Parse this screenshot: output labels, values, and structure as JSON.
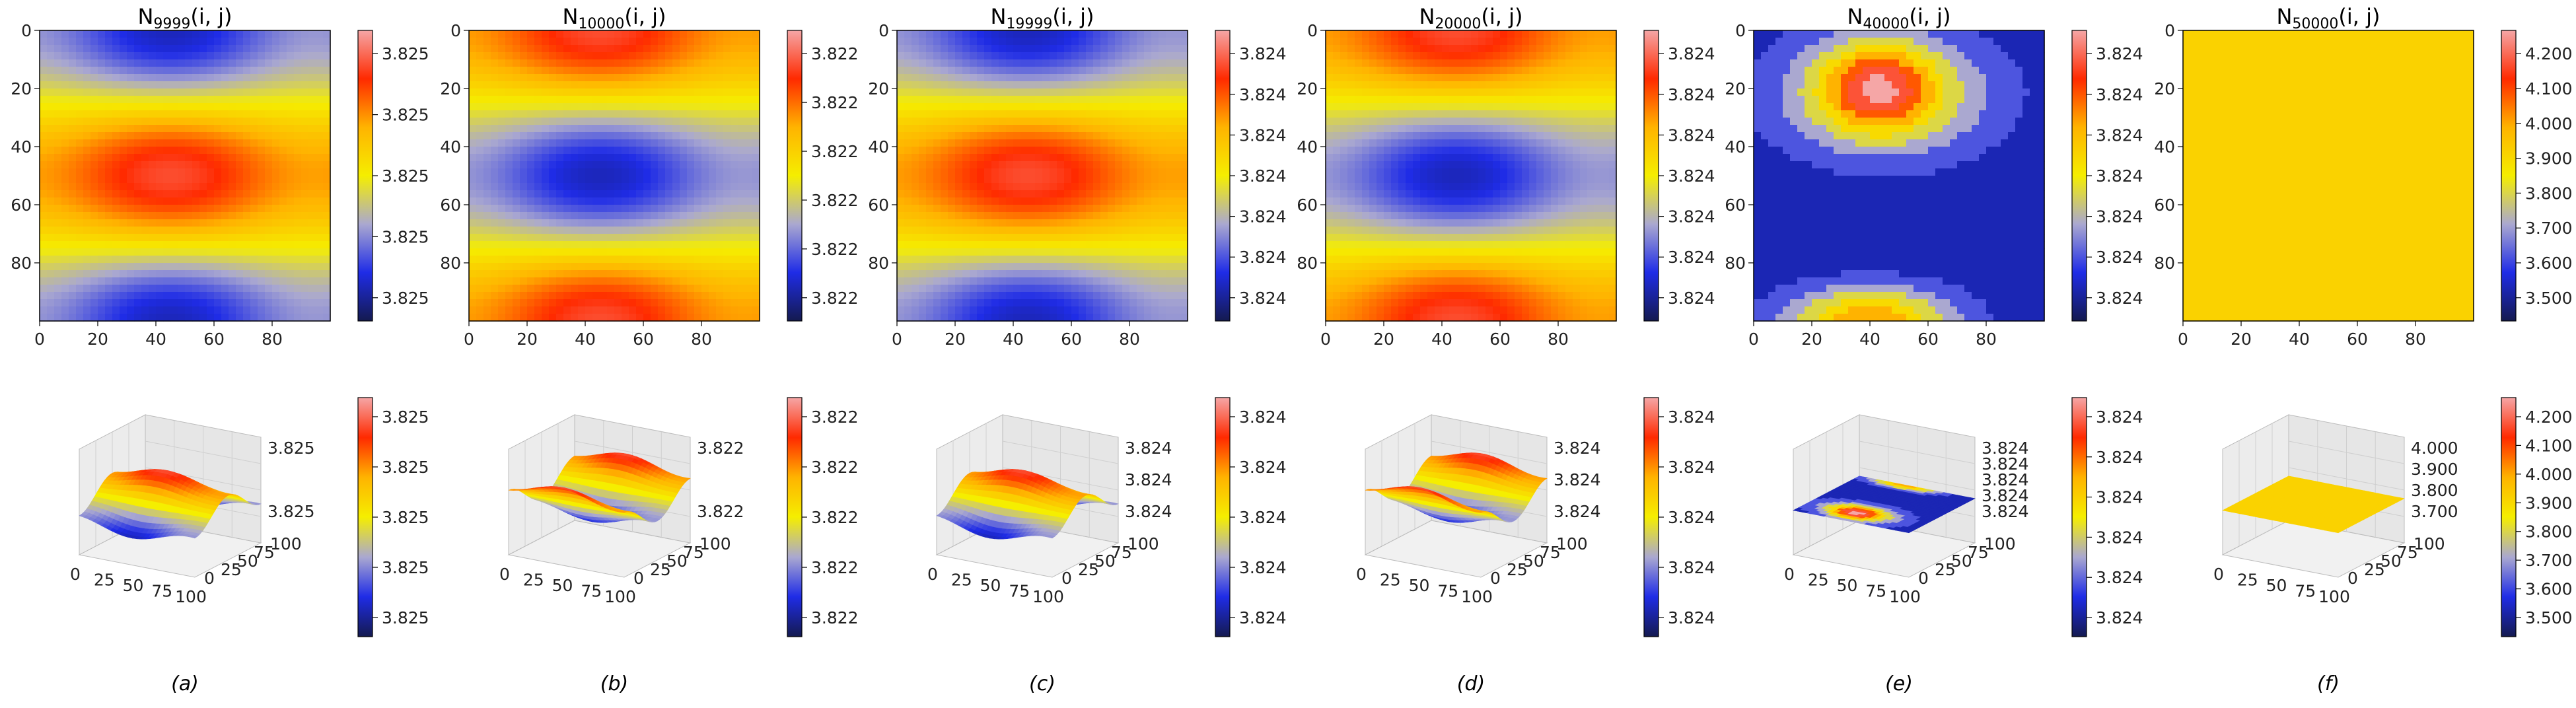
{
  "figure": {
    "panel_labels": [
      "(a)",
      "(b)",
      "(c)",
      "(d)",
      "(e)",
      "(f)"
    ]
  },
  "colors": {
    "colormap": [
      "#141a4f",
      "#1f2ce6",
      "#aaa8d0",
      "#f5ee00",
      "#ffb300",
      "#ff2a00",
      "#f5a6a6"
    ],
    "pane": "#f1f1f1",
    "grid": "#cfcfcf"
  },
  "chart_data": [
    {
      "type": "heatmap",
      "title_base": "N",
      "title_sub": "9999",
      "title_suffix": "(i, j)",
      "x_ticks": [
        "0",
        "20",
        "40",
        "60",
        "80"
      ],
      "y_ticks": [
        "0",
        "20",
        "40",
        "60",
        "80"
      ],
      "grid_size": [
        100,
        100
      ],
      "pattern": "a",
      "cbar_top_ticks": [
        "3.825",
        "3.825",
        "3.825",
        "3.825",
        "3.825"
      ],
      "z3d_ticks": [
        "3.825",
        "3.825"
      ],
      "xy3d_ticks": [
        "0",
        "25",
        "50",
        "75",
        "100"
      ],
      "cbar_bottom_ticks": [
        "3.825",
        "3.825",
        "3.825",
        "3.825",
        "3.825"
      ]
    },
    {
      "type": "heatmap",
      "title_base": "N",
      "title_sub": "10000",
      "title_suffix": "(i, j)",
      "x_ticks": [
        "0",
        "20",
        "40",
        "60",
        "80"
      ],
      "y_ticks": [
        "0",
        "20",
        "40",
        "60",
        "80"
      ],
      "grid_size": [
        100,
        100
      ],
      "pattern": "b",
      "cbar_top_ticks": [
        "3.822",
        "3.822",
        "3.822",
        "3.822",
        "3.822",
        "3.822"
      ],
      "z3d_ticks": [
        "3.822",
        "3.822"
      ],
      "xy3d_ticks": [
        "0",
        "25",
        "50",
        "75",
        "100"
      ],
      "cbar_bottom_ticks": [
        "3.822",
        "3.822",
        "3.822",
        "3.822",
        "3.822"
      ]
    },
    {
      "type": "heatmap",
      "title_base": "N",
      "title_sub": "19999",
      "title_suffix": "(i, j)",
      "x_ticks": [
        "0",
        "20",
        "40",
        "60",
        "80"
      ],
      "y_ticks": [
        "0",
        "20",
        "40",
        "60",
        "80"
      ],
      "grid_size": [
        100,
        100
      ],
      "pattern": "a",
      "cbar_top_ticks": [
        "3.824",
        "3.824",
        "3.824",
        "3.824",
        "3.824",
        "3.824",
        "3.824"
      ],
      "z3d_ticks": [
        "3.824",
        "3.824",
        "3.824"
      ],
      "xy3d_ticks": [
        "0",
        "25",
        "50",
        "75",
        "100"
      ],
      "cbar_bottom_ticks": [
        "3.824",
        "3.824",
        "3.824",
        "3.824",
        "3.824"
      ]
    },
    {
      "type": "heatmap",
      "title_base": "N",
      "title_sub": "20000",
      "title_suffix": "(i, j)",
      "x_ticks": [
        "0",
        "20",
        "40",
        "60",
        "80"
      ],
      "y_ticks": [
        "0",
        "20",
        "40",
        "60",
        "80"
      ],
      "grid_size": [
        100,
        100
      ],
      "pattern": "b",
      "cbar_top_ticks": [
        "3.824",
        "3.824",
        "3.824",
        "3.824",
        "3.824",
        "3.824",
        "3.824"
      ],
      "z3d_ticks": [
        "3.824",
        "3.824",
        "3.824"
      ],
      "xy3d_ticks": [
        "0",
        "25",
        "50",
        "75",
        "100"
      ],
      "cbar_bottom_ticks": [
        "3.824",
        "3.824",
        "3.824",
        "3.824",
        "3.824"
      ]
    },
    {
      "type": "heatmap",
      "title_base": "N",
      "title_sub": "40000",
      "title_suffix": "(i, j)",
      "x_ticks": [
        "0",
        "20",
        "40",
        "60",
        "80"
      ],
      "y_ticks": [
        "0",
        "20",
        "40",
        "60",
        "80"
      ],
      "grid_size": [
        100,
        100
      ],
      "pattern": "e",
      "cbar_top_ticks": [
        "3.824",
        "3.824",
        "3.824",
        "3.824",
        "3.824",
        "3.824",
        "3.824"
      ],
      "z3d_ticks": [
        "3.824",
        "3.824",
        "3.824",
        "3.824",
        "3.824"
      ],
      "xy3d_ticks": [
        "0",
        "25",
        "50",
        "75",
        "100"
      ],
      "cbar_bottom_ticks": [
        "3.824",
        "3.824",
        "3.824",
        "3.824",
        "3.824",
        "3.824"
      ]
    },
    {
      "type": "heatmap",
      "title_base": "N",
      "title_sub": "50000",
      "title_suffix": "(i, j)",
      "x_ticks": [
        "0",
        "20",
        "40",
        "60",
        "80"
      ],
      "y_ticks": [
        "0",
        "20",
        "40",
        "60",
        "80"
      ],
      "grid_size": [
        100,
        100
      ],
      "pattern": "f",
      "constant_value": 3.824,
      "cbar_top_ticks": [
        "4.200",
        "4.100",
        "4.000",
        "3.900",
        "3.800",
        "3.700",
        "3.600",
        "3.500"
      ],
      "z3d_ticks": [
        "4.000",
        "3.900",
        "3.800",
        "3.700"
      ],
      "xy3d_ticks": [
        "0",
        "25",
        "50",
        "75",
        "100"
      ],
      "cbar_bottom_ticks": [
        "4.200",
        "4.100",
        "4.000",
        "3.900",
        "3.800",
        "3.700",
        "3.600",
        "3.500"
      ]
    }
  ]
}
